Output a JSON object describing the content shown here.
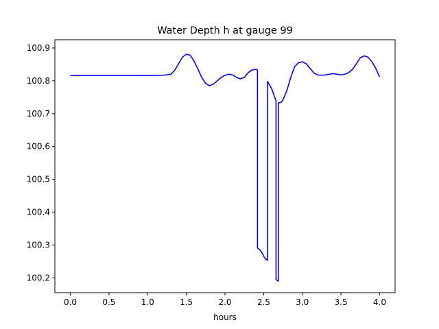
{
  "chart_data": {
    "type": "line",
    "title": "Water Depth h at gauge 99",
    "xlabel": "hours",
    "ylabel": "",
    "xlim": [
      -0.2,
      4.2
    ],
    "ylim": [
      100.155,
      100.925
    ],
    "grid": false,
    "legend": "none",
    "x_ticks": [
      0.0,
      0.5,
      1.0,
      1.5,
      2.0,
      2.5,
      3.0,
      3.5,
      4.0
    ],
    "x_tick_labels": [
      "0.0",
      "0.5",
      "1.0",
      "1.5",
      "2.0",
      "2.5",
      "3.0",
      "3.5",
      "4.0"
    ],
    "y_ticks": [
      100.2,
      100.3,
      100.4,
      100.5,
      100.6,
      100.7,
      100.8,
      100.9
    ],
    "y_tick_labels": [
      "100.2",
      "100.3",
      "100.4",
      "100.5",
      "100.6",
      "100.7",
      "100.8",
      "100.9"
    ],
    "series": [
      {
        "color": "#0000ff",
        "x": [
          0.0,
          0.5,
          1.0,
          1.2,
          1.3,
          1.35,
          1.4,
          1.45,
          1.5,
          1.55,
          1.6,
          1.65,
          1.7,
          1.75,
          1.8,
          1.85,
          1.9,
          1.95,
          2.0,
          2.05,
          2.1,
          2.15,
          2.2,
          2.25,
          2.3,
          2.35,
          2.4,
          2.42,
          2.42,
          2.45,
          2.48,
          2.51,
          2.54,
          2.55,
          2.55,
          2.6,
          2.64,
          2.66,
          2.66,
          2.69,
          2.69,
          2.7,
          2.73,
          2.75,
          2.8,
          2.85,
          2.9,
          2.95,
          3.0,
          3.05,
          3.1,
          3.15,
          3.2,
          3.25,
          3.3,
          3.35,
          3.4,
          3.45,
          3.5,
          3.55,
          3.6,
          3.65,
          3.7,
          3.75,
          3.8,
          3.85,
          3.9,
          3.95,
          4.0
        ],
        "y": [
          100.816,
          100.816,
          100.816,
          100.817,
          100.82,
          100.832,
          100.852,
          100.872,
          100.881,
          100.878,
          100.86,
          100.836,
          100.81,
          100.792,
          100.785,
          100.79,
          100.8,
          100.81,
          100.817,
          100.82,
          100.818,
          100.81,
          100.806,
          100.81,
          100.825,
          100.833,
          100.835,
          100.833,
          100.291,
          100.286,
          100.276,
          100.262,
          100.254,
          100.254,
          100.798,
          100.778,
          100.752,
          100.74,
          100.195,
          100.19,
          100.733,
          100.733,
          100.735,
          100.742,
          100.77,
          100.81,
          100.843,
          100.855,
          100.858,
          100.852,
          100.838,
          100.824,
          100.818,
          100.817,
          100.818,
          100.82,
          100.822,
          100.82,
          100.818,
          100.82,
          100.825,
          100.835,
          100.852,
          100.87,
          100.876,
          100.872,
          100.858,
          100.838,
          100.812
        ]
      }
    ]
  }
}
